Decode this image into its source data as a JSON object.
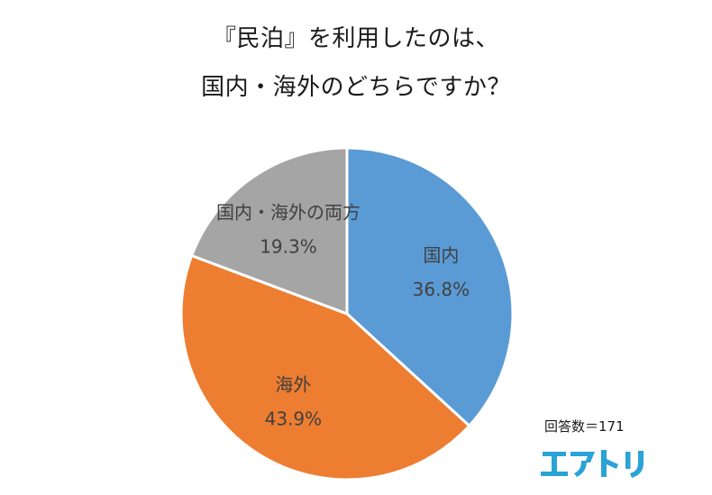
{
  "title_line1": "『民泊』を利用したのは、",
  "title_line2": "国内・海外のどちらですか？",
  "respondents": "回答数＝171",
  "logo": {
    "name": "エアトリ",
    "color": "#2aa3d6"
  },
  "chart_data": {
    "type": "pie",
    "start_angle_deg": 0,
    "direction": "clockwise",
    "slices": [
      {
        "label": "国内",
        "value": 36.8,
        "value_label": "36.8%",
        "color": "#5b9bd5"
      },
      {
        "label": "海外",
        "value": 43.9,
        "value_label": "43.9%",
        "color": "#ed7d31"
      },
      {
        "label": "国内・海外の両方",
        "value": 19.3,
        "value_label": "19.3%",
        "color": "#a5a5a5"
      }
    ],
    "legend": "none",
    "data_labels": "inside"
  }
}
